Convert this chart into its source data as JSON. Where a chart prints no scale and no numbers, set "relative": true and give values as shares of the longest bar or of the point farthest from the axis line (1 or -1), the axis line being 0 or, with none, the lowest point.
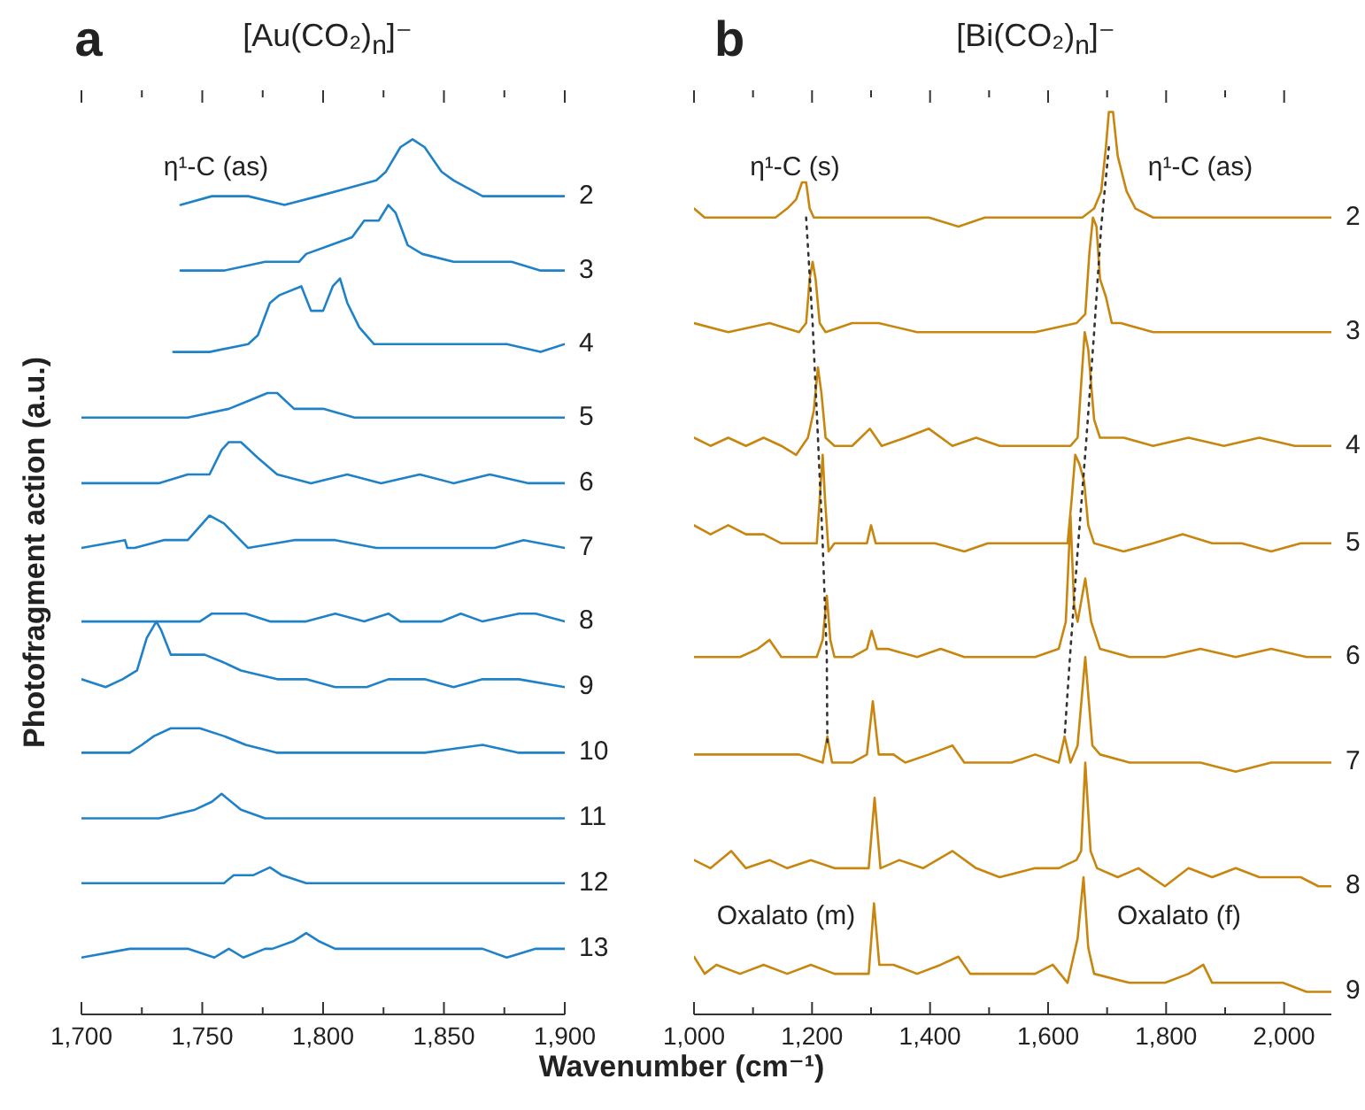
{
  "chart_data": [
    {
      "type": "line",
      "title": "[Au(CO₂)$_{n}$]⁻",
      "ylabel": "Photofragment action (a.u.)",
      "xlabel": "Wavenumber (cm⁻¹)",
      "relative": true,
      "annotations": [
        "a",
        "η¹-C (as)"
      ],
      "xlim": [
        1700,
        1900
      ],
      "xticks": [
        {
          "value": 1700,
          "label": "1,700"
        },
        {
          "value": 1725,
          "label": null
        },
        {
          "value": 1750,
          "label": "1,750"
        },
        {
          "value": 1775,
          "label": null
        },
        {
          "value": 1800,
          "label": "1,800"
        },
        {
          "value": 1825,
          "label": null
        },
        {
          "value": 1850,
          "label": "1,850"
        },
        {
          "value": 1875,
          "label": null
        },
        {
          "value": 1900,
          "label": "1,900"
        }
      ],
      "series": [
        {
          "name": "2",
          "color": "#1f82c9",
          "x": [
            1741,
            1754,
            1769,
            1784,
            1798,
            1810,
            1822,
            1826,
            1832,
            1837,
            1842,
            1849,
            1854,
            1866,
            1878,
            1890,
            1900
          ],
          "values": [
            0.925,
            0.935,
            0.935,
            0.925,
            0.935,
            0.944,
            0.953,
            0.963,
            0.991,
            1.0,
            0.991,
            0.963,
            0.953,
            0.935,
            0.935,
            0.935,
            0.935
          ]
        },
        {
          "name": "3",
          "color": "#1f82c9",
          "x": [
            1741,
            1747,
            1759,
            1776,
            1790,
            1793,
            1803,
            1812,
            1817,
            1821,
            1823,
            1827,
            1830,
            1835,
            1841,
            1854,
            1866,
            1878,
            1890,
            1900
          ],
          "values": [
            0.85,
            0.85,
            0.85,
            0.86,
            0.86,
            0.869,
            0.879,
            0.888,
            0.907,
            0.907,
            0.907,
            0.925,
            0.916,
            0.879,
            0.869,
            0.86,
            0.86,
            0.86,
            0.85,
            0.85
          ]
        },
        {
          "name": "4",
          "color": "#1f82c9",
          "x": [
            1738,
            1753,
            1769,
            1773,
            1778,
            1782,
            1791,
            1795,
            1800,
            1804,
            1807,
            1810,
            1815,
            1821,
            1832,
            1846,
            1861,
            1876,
            1890,
            1900
          ],
          "values": [
            0.757,
            0.757,
            0.766,
            0.776,
            0.813,
            0.822,
            0.832,
            0.804,
            0.804,
            0.832,
            0.841,
            0.813,
            0.785,
            0.766,
            0.766,
            0.766,
            0.766,
            0.766,
            0.757,
            0.766
          ]
        },
        {
          "name": "5",
          "color": "#1f82c9",
          "x": [
            1700,
            1720,
            1744,
            1761,
            1769,
            1777,
            1781,
            1788,
            1800,
            1813,
            1832,
            1846,
            1866,
            1885,
            1900
          ],
          "values": [
            0.682,
            0.682,
            0.682,
            0.692,
            0.701,
            0.71,
            0.71,
            0.692,
            0.692,
            0.682,
            0.682,
            0.682,
            0.682,
            0.682,
            0.682
          ]
        },
        {
          "name": "6",
          "color": "#1f82c9",
          "x": [
            1700,
            1715,
            1732,
            1744,
            1753,
            1758,
            1761,
            1766,
            1773,
            1781,
            1795,
            1810,
            1824,
            1840,
            1854,
            1869,
            1885,
            1900
          ],
          "values": [
            0.607,
            0.607,
            0.607,
            0.617,
            0.617,
            0.645,
            0.654,
            0.654,
            0.636,
            0.617,
            0.607,
            0.617,
            0.607,
            0.617,
            0.607,
            0.617,
            0.607,
            0.607
          ]
        },
        {
          "name": "7",
          "color": "#1f82c9",
          "x": [
            1700,
            1718,
            1719,
            1722,
            1734,
            1744,
            1753,
            1759,
            1769,
            1788,
            1805,
            1822,
            1837,
            1856,
            1871,
            1883,
            1900
          ],
          "values": [
            0.533,
            0.542,
            0.533,
            0.533,
            0.542,
            0.542,
            0.57,
            0.561,
            0.533,
            0.542,
            0.542,
            0.533,
            0.533,
            0.533,
            0.533,
            0.542,
            0.533
          ]
        },
        {
          "name": "8",
          "color": "#1f82c9",
          "x": [
            1700,
            1710,
            1727,
            1744,
            1749,
            1754,
            1768,
            1778,
            1793,
            1805,
            1817,
            1827,
            1832,
            1849,
            1857,
            1866,
            1881,
            1888,
            1900
          ],
          "values": [
            0.449,
            0.449,
            0.449,
            0.449,
            0.449,
            0.458,
            0.458,
            0.449,
            0.449,
            0.458,
            0.449,
            0.458,
            0.449,
            0.449,
            0.458,
            0.449,
            0.458,
            0.458,
            0.449
          ]
        },
        {
          "name": "9",
          "color": "#1f82c9",
          "x": [
            1700,
            1710,
            1717,
            1723,
            1727,
            1731,
            1733,
            1737,
            1744,
            1751,
            1759,
            1766,
            1781,
            1793,
            1805,
            1818,
            1827,
            1842,
            1854,
            1866,
            1881,
            1900
          ],
          "values": [
            0.383,
            0.374,
            0.383,
            0.393,
            0.43,
            0.449,
            0.439,
            0.411,
            0.411,
            0.411,
            0.402,
            0.393,
            0.383,
            0.383,
            0.374,
            0.374,
            0.383,
            0.383,
            0.374,
            0.383,
            0.383,
            0.374
          ]
        },
        {
          "name": "10",
          "color": "#1f82c9",
          "x": [
            1700,
            1720,
            1725,
            1730,
            1737,
            1749,
            1759,
            1768,
            1781,
            1793,
            1817,
            1842,
            1866,
            1881,
            1900
          ],
          "values": [
            0.299,
            0.299,
            0.308,
            0.318,
            0.327,
            0.327,
            0.318,
            0.308,
            0.299,
            0.299,
            0.299,
            0.299,
            0.308,
            0.299,
            0.299
          ]
        },
        {
          "name": "11",
          "color": "#1f82c9",
          "x": [
            1700,
            1732,
            1747,
            1754,
            1758,
            1766,
            1776,
            1793,
            1817,
            1842,
            1866,
            1900
          ],
          "values": [
            0.224,
            0.224,
            0.234,
            0.243,
            0.252,
            0.234,
            0.224,
            0.224,
            0.224,
            0.224,
            0.224,
            0.224
          ]
        },
        {
          "name": "12",
          "color": "#1f82c9",
          "x": [
            1700,
            1715,
            1730,
            1744,
            1759,
            1763,
            1771,
            1778,
            1783,
            1793,
            1807,
            1822,
            1842,
            1866,
            1881,
            1900
          ],
          "values": [
            0.15,
            0.15,
            0.15,
            0.15,
            0.15,
            0.159,
            0.159,
            0.168,
            0.159,
            0.15,
            0.15,
            0.15,
            0.15,
            0.15,
            0.15,
            0.15
          ]
        },
        {
          "name": "13",
          "color": "#1f82c9",
          "x": [
            1700,
            1720,
            1744,
            1755,
            1761,
            1767,
            1776,
            1779,
            1788,
            1793,
            1798,
            1805,
            1817,
            1827,
            1842,
            1854,
            1866,
            1876,
            1888,
            1900
          ],
          "values": [
            0.065,
            0.075,
            0.075,
            0.065,
            0.075,
            0.065,
            0.075,
            0.075,
            0.084,
            0.093,
            0.084,
            0.075,
            0.075,
            0.075,
            0.075,
            0.075,
            0.075,
            0.065,
            0.075,
            0.075
          ]
        }
      ]
    },
    {
      "type": "line",
      "title": "[Bi(CO₂)$_{n}$]⁻",
      "relative": true,
      "annotations": [
        "b",
        "η¹-C (s)",
        "η¹-C (as)",
        "Oxalato (m)",
        "Oxalato (f)"
      ],
      "xlim": [
        1000,
        2080
      ],
      "xticks": [
        {
          "value": 1000,
          "label": "1,000"
        },
        {
          "value": 1100,
          "label": null
        },
        {
          "value": 1200,
          "label": "1,200"
        },
        {
          "value": 1300,
          "label": null
        },
        {
          "value": 1400,
          "label": "1,400"
        },
        {
          "value": 1500,
          "label": null
        },
        {
          "value": 1600,
          "label": "1,600"
        },
        {
          "value": 1700,
          "label": null
        },
        {
          "value": 1800,
          "label": "1,800"
        },
        {
          "value": 1900,
          "label": null
        },
        {
          "value": 2000,
          "label": "2,000"
        }
      ],
      "series": [
        {
          "name": "2",
          "color": "#c8860f",
          "x": [
            1000,
            1018,
            1048,
            1078,
            1108,
            1138,
            1158,
            1173,
            1183,
            1190,
            1196,
            1203,
            1238,
            1278,
            1318,
            1358,
            1398,
            1448,
            1493,
            1538,
            1578,
            1618,
            1658,
            1678,
            1690,
            1698,
            1703,
            1710,
            1718,
            1733,
            1748,
            1778,
            1828,
            1878,
            1928,
            1978,
            2028,
            2080
          ],
          "values": [
            0.893,
            0.883,
            0.883,
            0.883,
            0.883,
            0.883,
            0.893,
            0.903,
            0.922,
            0.922,
            0.893,
            0.883,
            0.883,
            0.883,
            0.883,
            0.883,
            0.883,
            0.873,
            0.883,
            0.883,
            0.883,
            0.883,
            0.883,
            0.893,
            0.912,
            0.961,
            1.0,
            1.0,
            0.951,
            0.912,
            0.893,
            0.883,
            0.883,
            0.883,
            0.883,
            0.883,
            0.883,
            0.883
          ]
        },
        {
          "name": "3",
          "color": "#c8860f",
          "x": [
            1000,
            1058,
            1128,
            1178,
            1190,
            1196,
            1201,
            1206,
            1213,
            1223,
            1268,
            1298,
            1313,
            1378,
            1478,
            1578,
            1648,
            1663,
            1670,
            1676,
            1682,
            1688,
            1698,
            1708,
            1723,
            1778,
            1878,
            1978,
            2080
          ],
          "values": [
            0.766,
            0.756,
            0.766,
            0.756,
            0.766,
            0.815,
            0.834,
            0.815,
            0.766,
            0.756,
            0.766,
            0.766,
            0.766,
            0.756,
            0.756,
            0.756,
            0.766,
            0.776,
            0.844,
            0.883,
            0.873,
            0.815,
            0.795,
            0.766,
            0.766,
            0.756,
            0.756,
            0.756,
            0.756
          ]
        },
        {
          "name": "4",
          "color": "#c8860f",
          "x": [
            1000,
            1028,
            1058,
            1088,
            1118,
            1148,
            1173,
            1193,
            1203,
            1210,
            1216,
            1223,
            1238,
            1268,
            1298,
            1318,
            1358,
            1398,
            1438,
            1478,
            1518,
            1558,
            1598,
            1638,
            1650,
            1656,
            1662,
            1668,
            1678,
            1688,
            1728,
            1778,
            1838,
            1898,
            1958,
            2018,
            2080
          ],
          "values": [
            0.639,
            0.63,
            0.639,
            0.63,
            0.639,
            0.63,
            0.62,
            0.639,
            0.669,
            0.717,
            0.688,
            0.639,
            0.63,
            0.63,
            0.649,
            0.63,
            0.639,
            0.649,
            0.63,
            0.639,
            0.63,
            0.63,
            0.63,
            0.63,
            0.639,
            0.698,
            0.756,
            0.737,
            0.659,
            0.639,
            0.639,
            0.63,
            0.639,
            0.63,
            0.639,
            0.63,
            0.63
          ]
        },
        {
          "name": "5",
          "color": "#c8860f",
          "x": [
            1000,
            1028,
            1058,
            1088,
            1118,
            1148,
            1178,
            1208,
            1214,
            1218,
            1222,
            1228,
            1238,
            1268,
            1293,
            1300,
            1308,
            1358,
            1408,
            1458,
            1498,
            1538,
            1578,
            1618,
            1633,
            1640,
            1646,
            1653,
            1661,
            1668,
            1678,
            1728,
            1778,
            1828,
            1878,
            1928,
            1978,
            2028,
            2080
          ],
          "values": [
            0.542,
            0.532,
            0.542,
            0.532,
            0.532,
            0.522,
            0.522,
            0.522,
            0.581,
            0.62,
            0.571,
            0.513,
            0.522,
            0.522,
            0.522,
            0.542,
            0.522,
            0.522,
            0.522,
            0.513,
            0.522,
            0.522,
            0.522,
            0.522,
            0.522,
            0.571,
            0.62,
            0.61,
            0.591,
            0.542,
            0.522,
            0.513,
            0.522,
            0.532,
            0.522,
            0.522,
            0.513,
            0.522,
            0.522
          ]
        },
        {
          "name": "6",
          "color": "#c8860f",
          "x": [
            1000,
            1038,
            1078,
            1108,
            1128,
            1148,
            1178,
            1208,
            1218,
            1225,
            1231,
            1238,
            1268,
            1293,
            1301,
            1310,
            1328,
            1378,
            1418,
            1458,
            1498,
            1538,
            1578,
            1618,
            1630,
            1638,
            1644,
            1650,
            1663,
            1673,
            1688,
            1738,
            1798,
            1858,
            1918,
            1978,
            2038,
            2080
          ],
          "values": [
            0.396,
            0.396,
            0.396,
            0.405,
            0.415,
            0.396,
            0.396,
            0.396,
            0.415,
            0.464,
            0.415,
            0.396,
            0.396,
            0.405,
            0.425,
            0.405,
            0.405,
            0.396,
            0.405,
            0.396,
            0.396,
            0.396,
            0.396,
            0.405,
            0.435,
            0.552,
            0.454,
            0.435,
            0.483,
            0.435,
            0.405,
            0.396,
            0.396,
            0.405,
            0.396,
            0.405,
            0.396,
            0.396
          ]
        },
        {
          "name": "7",
          "color": "#c8860f",
          "x": [
            1000,
            1038,
            1078,
            1128,
            1178,
            1218,
            1226,
            1234,
            1268,
            1293,
            1303,
            1313,
            1338,
            1358,
            1398,
            1438,
            1458,
            1498,
            1538,
            1578,
            1618,
            1628,
            1638,
            1650,
            1663,
            1675,
            1688,
            1738,
            1798,
            1858,
            1918,
            1978,
            2038,
            2080
          ],
          "values": [
            0.288,
            0.288,
            0.288,
            0.288,
            0.288,
            0.279,
            0.308,
            0.279,
            0.279,
            0.288,
            0.347,
            0.288,
            0.288,
            0.279,
            0.288,
            0.298,
            0.279,
            0.279,
            0.279,
            0.288,
            0.279,
            0.308,
            0.279,
            0.298,
            0.396,
            0.298,
            0.288,
            0.279,
            0.279,
            0.279,
            0.269,
            0.279,
            0.279,
            0.279
          ]
        },
        {
          "name": "8",
          "color": "#c8860f",
          "x": [
            1000,
            1028,
            1063,
            1088,
            1128,
            1158,
            1198,
            1238,
            1278,
            1296,
            1306,
            1316,
            1348,
            1388,
            1438,
            1478,
            1518,
            1578,
            1618,
            1648,
            1656,
            1663,
            1672,
            1683,
            1718,
            1753,
            1798,
            1838,
            1878,
            1918,
            1958,
            2028,
            2058,
            2080
          ],
          "values": [
            0.171,
            0.162,
            0.181,
            0.162,
            0.171,
            0.162,
            0.171,
            0.162,
            0.162,
            0.162,
            0.24,
            0.162,
            0.171,
            0.162,
            0.181,
            0.162,
            0.152,
            0.162,
            0.162,
            0.171,
            0.181,
            0.279,
            0.181,
            0.162,
            0.152,
            0.162,
            0.142,
            0.162,
            0.152,
            0.162,
            0.152,
            0.152,
            0.142,
            0.142
          ]
        },
        {
          "name": "9",
          "color": "#c8860f",
          "x": [
            1000,
            1018,
            1038,
            1078,
            1118,
            1158,
            1198,
            1238,
            1278,
            1296,
            1305,
            1314,
            1338,
            1378,
            1418,
            1448,
            1468,
            1518,
            1578,
            1608,
            1633,
            1650,
            1660,
            1668,
            1678,
            1738,
            1798,
            1838,
            1863,
            1878,
            1938,
            1998,
            2038,
            2080
          ],
          "values": [
            0.064,
            0.045,
            0.055,
            0.045,
            0.055,
            0.045,
            0.055,
            0.045,
            0.045,
            0.045,
            0.123,
            0.055,
            0.055,
            0.045,
            0.055,
            0.064,
            0.045,
            0.045,
            0.045,
            0.055,
            0.035,
            0.084,
            0.152,
            0.074,
            0.045,
            0.035,
            0.035,
            0.045,
            0.055,
            0.035,
            0.035,
            0.035,
            0.025,
            0.025
          ]
        },
        {
          "color": "#333333",
          "line_style": "dotted",
          "x": [
            1190,
            1201,
            1210,
            1218,
            1225,
            1226
          ],
          "values": [
            0.883,
            0.766,
            0.639,
            0.522,
            0.396,
            0.298
          ]
        },
        {
          "color": "#333333",
          "line_style": "dotted",
          "x": [
            1703,
            1690,
            1678,
            1664,
            1650,
            1638,
            1628
          ],
          "values": [
            0.961,
            0.873,
            0.756,
            0.63,
            0.513,
            0.405,
            0.308
          ]
        }
      ]
    }
  ]
}
